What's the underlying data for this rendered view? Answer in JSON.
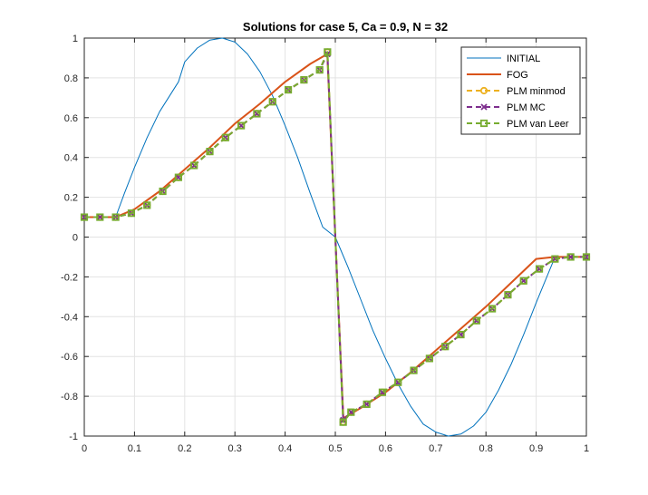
{
  "chart_data": {
    "type": "line",
    "title": "Solutions for case 5, Ca = 0.9, N = 32",
    "xlabel": "",
    "ylabel": "",
    "xlim": [
      0,
      1
    ],
    "ylim": [
      -1,
      1
    ],
    "grid": true,
    "legend_position": "top-right",
    "x_ticks": [
      0,
      0.1,
      0.2,
      0.3,
      0.4,
      0.5,
      0.6,
      0.7,
      0.8,
      0.9,
      1
    ],
    "x_tick_labels": [
      "0",
      "0.1",
      "0.2",
      "0.3",
      "0.4",
      "0.5",
      "0.6",
      "0.7",
      "0.8",
      "0.9",
      "1"
    ],
    "y_ticks": [
      -1,
      -0.8,
      -0.6,
      -0.4,
      -0.2,
      0,
      0.2,
      0.4,
      0.6,
      0.8,
      1
    ],
    "y_tick_labels": [
      "-1",
      "-0.8",
      "-0.6",
      "-0.4",
      "-0.2",
      "0",
      "0.2",
      "0.4",
      "0.6",
      "0.8",
      "1"
    ],
    "series": [
      {
        "name": "INITIAL",
        "color": "#0072bd",
        "marker": "none",
        "dashed": false,
        "x": [
          0,
          0.0625,
          0.08,
          0.1,
          0.125,
          0.15,
          0.1875,
          0.2,
          0.225,
          0.25,
          0.275,
          0.3,
          0.325,
          0.35,
          0.375,
          0.4,
          0.425,
          0.45,
          0.475,
          0.5,
          0.525,
          0.55,
          0.575,
          0.6,
          0.625,
          0.65,
          0.675,
          0.7,
          0.725,
          0.75,
          0.775,
          0.8,
          0.825,
          0.85,
          0.875,
          0.9,
          0.9375,
          0.95,
          1
        ],
        "y": [
          0.1,
          0.1,
          0.22,
          0.35,
          0.5,
          0.63,
          0.78,
          0.88,
          0.95,
          0.99,
          1.0,
          0.98,
          0.92,
          0.83,
          0.71,
          0.56,
          0.4,
          0.22,
          0.05,
          0.0,
          -0.15,
          -0.31,
          -0.47,
          -0.61,
          -0.74,
          -0.85,
          -0.94,
          -0.98,
          -1.0,
          -0.99,
          -0.95,
          -0.88,
          -0.77,
          -0.64,
          -0.49,
          -0.33,
          -0.1,
          -0.1,
          -0.1
        ]
      },
      {
        "name": "FOG",
        "color": "#d95319",
        "marker": "none",
        "dashed": false,
        "x": [
          0,
          0.0625,
          0.1,
          0.15,
          0.2,
          0.25,
          0.3,
          0.35,
          0.4,
          0.45,
          0.484,
          0.5,
          0.516,
          0.55,
          0.6,
          0.65,
          0.7,
          0.75,
          0.8,
          0.85,
          0.9,
          0.9375,
          1
        ],
        "y": [
          0.1,
          0.1,
          0.14,
          0.23,
          0.34,
          0.45,
          0.57,
          0.67,
          0.78,
          0.87,
          0.92,
          0.0,
          -0.91,
          -0.86,
          -0.78,
          -0.68,
          -0.57,
          -0.46,
          -0.35,
          -0.23,
          -0.11,
          -0.1,
          -0.1
        ]
      },
      {
        "name": "PLM minmod",
        "color": "#edb120",
        "marker": "circle",
        "dashed": true,
        "x": [
          0,
          0.03125,
          0.0625,
          0.09375,
          0.125,
          0.15625,
          0.1875,
          0.21875,
          0.25,
          0.28125,
          0.3125,
          0.34375,
          0.375,
          0.40625,
          0.4375,
          0.46875,
          0.484375,
          0.515625,
          0.53125,
          0.5625,
          0.59375,
          0.625,
          0.65625,
          0.6875,
          0.71875,
          0.75,
          0.78125,
          0.8125,
          0.84375,
          0.875,
          0.90625,
          0.9375,
          0.96875,
          1
        ],
        "y": [
          0.1,
          0.1,
          0.1,
          0.12,
          0.16,
          0.23,
          0.3,
          0.36,
          0.43,
          0.5,
          0.56,
          0.62,
          0.68,
          0.74,
          0.79,
          0.84,
          0.93,
          -0.93,
          -0.88,
          -0.84,
          -0.78,
          -0.73,
          -0.67,
          -0.61,
          -0.55,
          -0.49,
          -0.42,
          -0.36,
          -0.29,
          -0.22,
          -0.16,
          -0.11,
          -0.1,
          -0.1
        ]
      },
      {
        "name": "PLM MC",
        "color": "#7e2f8e",
        "marker": "x",
        "dashed": true,
        "x": [
          0,
          0.03125,
          0.0625,
          0.09375,
          0.125,
          0.15625,
          0.1875,
          0.21875,
          0.25,
          0.28125,
          0.3125,
          0.34375,
          0.375,
          0.40625,
          0.4375,
          0.46875,
          0.484375,
          0.515625,
          0.53125,
          0.5625,
          0.59375,
          0.625,
          0.65625,
          0.6875,
          0.71875,
          0.75,
          0.78125,
          0.8125,
          0.84375,
          0.875,
          0.90625,
          0.9375,
          0.96875,
          1
        ],
        "y": [
          0.1,
          0.1,
          0.1,
          0.12,
          0.16,
          0.23,
          0.3,
          0.36,
          0.43,
          0.5,
          0.56,
          0.62,
          0.68,
          0.74,
          0.79,
          0.84,
          0.92,
          -0.92,
          -0.88,
          -0.84,
          -0.78,
          -0.73,
          -0.67,
          -0.61,
          -0.55,
          -0.49,
          -0.42,
          -0.36,
          -0.29,
          -0.22,
          -0.16,
          -0.11,
          -0.1,
          -0.1
        ]
      },
      {
        "name": "PLM van Leer",
        "color": "#77ac30",
        "marker": "square",
        "dashed": true,
        "x": [
          0,
          0.03125,
          0.0625,
          0.09375,
          0.125,
          0.15625,
          0.1875,
          0.21875,
          0.25,
          0.28125,
          0.3125,
          0.34375,
          0.375,
          0.40625,
          0.4375,
          0.46875,
          0.484375,
          0.515625,
          0.53125,
          0.5625,
          0.59375,
          0.625,
          0.65625,
          0.6875,
          0.71875,
          0.75,
          0.78125,
          0.8125,
          0.84375,
          0.875,
          0.90625,
          0.9375,
          0.96875,
          1
        ],
        "y": [
          0.1,
          0.1,
          0.1,
          0.12,
          0.16,
          0.23,
          0.3,
          0.36,
          0.43,
          0.5,
          0.56,
          0.62,
          0.68,
          0.74,
          0.79,
          0.84,
          0.93,
          -0.93,
          -0.88,
          -0.84,
          -0.78,
          -0.73,
          -0.67,
          -0.61,
          -0.55,
          -0.49,
          -0.42,
          -0.36,
          -0.29,
          -0.22,
          -0.16,
          -0.11,
          -0.1,
          -0.1
        ]
      }
    ]
  }
}
